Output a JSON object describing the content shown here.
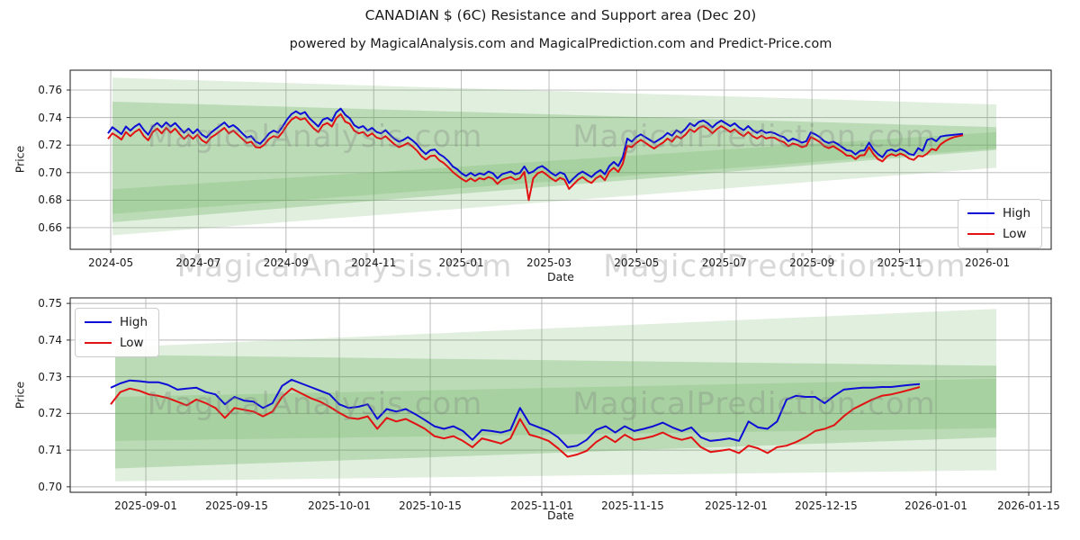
{
  "header": {
    "title": "CANADIAN $ (6C) Resistance and Support area (Dec 20)",
    "subtitle": "powered by MagicalAnalysis.com and MagicalPrediction.com and Predict-Price.com"
  },
  "watermarks": {
    "left_text": "MagicalAnalysis.com",
    "right_text": "MagicalPrediction.com"
  },
  "legend": {
    "high_label": "High",
    "low_label": "Low"
  },
  "colors": {
    "high": "#0d0dd6",
    "low": "#e31212",
    "band_green": "#58a84b",
    "grid": "#b5b5b5",
    "frame": "#2b2b2b",
    "tick_text": "#1a1a1a"
  },
  "chart_data": [
    {
      "type": "line",
      "name": "full-history",
      "ylabel": "Price",
      "xlabel": "Date",
      "legend_position": "lower-right",
      "grid": true,
      "ylim": [
        0.6443,
        0.7744
      ],
      "yticks": [
        0.76,
        0.74,
        0.72,
        0.7,
        0.68,
        0.66
      ],
      "ytick_labels": [
        "0.76",
        "0.74",
        "0.72",
        "0.70",
        "0.68",
        "0.66"
      ],
      "xticks": [
        {
          "label": "2024-05",
          "f": 0.0413
        },
        {
          "label": "2024-07",
          "f": 0.1306
        },
        {
          "label": "2024-09",
          "f": 0.22
        },
        {
          "label": "2024-11",
          "f": 0.3094
        },
        {
          "label": "2025-01",
          "f": 0.3987
        },
        {
          "label": "2025-03",
          "f": 0.4881
        },
        {
          "label": "2025-05",
          "f": 0.5774
        },
        {
          "label": "2025-07",
          "f": 0.6668
        },
        {
          "label": "2025-09",
          "f": 0.7561
        },
        {
          "label": "2025-11",
          "f": 0.8455
        },
        {
          "label": "2026-01",
          "f": 0.9349
        }
      ],
      "series_range": [
        0.0385,
        0.9101
      ],
      "series": [
        {
          "name": "High",
          "values": [
            0.7285,
            0.733,
            0.7305,
            0.728,
            0.7335,
            0.7305,
            0.7335,
            0.7355,
            0.731,
            0.7275,
            0.7335,
            0.736,
            0.733,
            0.7365,
            0.7335,
            0.736,
            0.7325,
            0.729,
            0.732,
            0.7285,
            0.7315,
            0.7275,
            0.7255,
            0.729,
            0.7315,
            0.734,
            0.7365,
            0.733,
            0.7345,
            0.732,
            0.7285,
            0.7255,
            0.7265,
            0.7225,
            0.721,
            0.7245,
            0.7285,
            0.7305,
            0.729,
            0.7335,
            0.7385,
            0.7425,
            0.7445,
            0.7425,
            0.744,
            0.7395,
            0.7365,
            0.7335,
            0.7385,
            0.7398,
            0.7375,
            0.7438,
            0.7465,
            0.742,
            0.7395,
            0.7345,
            0.7325,
            0.7338,
            0.7305,
            0.7325,
            0.7295,
            0.7285,
            0.7308,
            0.7275,
            0.7245,
            0.7225,
            0.7238,
            0.7258,
            0.7235,
            0.7205,
            0.7165,
            0.7135,
            0.7162,
            0.7168,
            0.7135,
            0.7115,
            0.7085,
            0.7045,
            0.7025,
            0.6995,
            0.6975,
            0.6998,
            0.6978,
            0.6995,
            0.6985,
            0.7008,
            0.6995,
            0.6958,
            0.6988,
            0.6998,
            0.7008,
            0.6988,
            0.6998,
            0.7045,
            0.6995,
            0.7008,
            0.7035,
            0.7048,
            0.7025,
            0.6998,
            0.6978,
            0.7002,
            0.6988,
            0.6925,
            0.6958,
            0.6988,
            0.7008,
            0.6988,
            0.6968,
            0.6998,
            0.7018,
            0.6988,
            0.7048,
            0.7078,
            0.7048,
            0.7112,
            0.7248,
            0.7225,
            0.7258,
            0.7278,
            0.7258,
            0.7238,
            0.7218,
            0.7238,
            0.7258,
            0.7288,
            0.7268,
            0.7308,
            0.7288,
            0.7318,
            0.7358,
            0.7338,
            0.7368,
            0.7378,
            0.7358,
            0.7328,
            0.7358,
            0.7378,
            0.7358,
            0.7338,
            0.7358,
            0.7328,
            0.7308,
            0.7338,
            0.7308,
            0.7288,
            0.7308,
            0.7288,
            0.7295,
            0.7285,
            0.7268,
            0.7258,
            0.7228,
            0.7248,
            0.7235,
            0.7218,
            0.7228,
            0.7292,
            0.7278,
            0.7258,
            0.7228,
            0.7215,
            0.7225,
            0.7208,
            0.7185,
            0.7162,
            0.7158,
            0.7132,
            0.7158,
            0.7162,
            0.7218,
            0.7168,
            0.7135,
            0.7112,
            0.7158,
            0.7168,
            0.7155,
            0.7172,
            0.7158,
            0.7135,
            0.7128,
            0.7178,
            0.7158,
            0.7238,
            0.7248,
            0.7228,
            0.7262,
            0.7268,
            0.7272,
            0.7275,
            0.7278,
            0.7282
          ]
        },
        {
          "name": "Low",
          "values": [
            0.7245,
            0.7285,
            0.7265,
            0.724,
            0.7295,
            0.7265,
            0.7295,
            0.7315,
            0.7265,
            0.7235,
            0.7295,
            0.732,
            0.7285,
            0.7325,
            0.729,
            0.732,
            0.728,
            0.7245,
            0.7275,
            0.7245,
            0.7275,
            0.7235,
            0.7215,
            0.7255,
            0.7275,
            0.73,
            0.7325,
            0.7285,
            0.7305,
            0.7275,
            0.7245,
            0.7215,
            0.7225,
            0.7185,
            0.7182,
            0.7205,
            0.7245,
            0.7265,
            0.7255,
            0.7295,
            0.7345,
            0.7385,
            0.7405,
            0.7385,
            0.7395,
            0.7355,
            0.732,
            0.7295,
            0.7345,
            0.736,
            0.7335,
            0.7395,
            0.7425,
            0.737,
            0.7355,
            0.7305,
            0.7285,
            0.7295,
            0.7265,
            0.7285,
            0.7255,
            0.7245,
            0.7265,
            0.7235,
            0.7205,
            0.7185,
            0.7198,
            0.7215,
            0.719,
            0.716,
            0.712,
            0.7095,
            0.712,
            0.7125,
            0.709,
            0.707,
            0.704,
            0.7005,
            0.698,
            0.6955,
            0.6935,
            0.6958,
            0.6938,
            0.696,
            0.695,
            0.6968,
            0.6955,
            0.6918,
            0.6948,
            0.6958,
            0.6968,
            0.6948,
            0.6958,
            0.7005,
            0.68,
            0.6958,
            0.6995,
            0.7008,
            0.6985,
            0.6958,
            0.6938,
            0.6962,
            0.6948,
            0.6882,
            0.6915,
            0.6948,
            0.6968,
            0.6942,
            0.6925,
            0.6958,
            0.6978,
            0.6945,
            0.7008,
            0.7035,
            0.7005,
            0.7065,
            0.7195,
            0.7185,
            0.7215,
            0.7238,
            0.7218,
            0.7195,
            0.7175,
            0.7198,
            0.7218,
            0.7248,
            0.7225,
            0.7265,
            0.7248,
            0.7275,
            0.7315,
            0.7295,
            0.7325,
            0.7338,
            0.7318,
            0.7285,
            0.7315,
            0.7338,
            0.7318,
            0.7295,
            0.7315,
            0.7285,
            0.7265,
            0.7295,
            0.7265,
            0.7248,
            0.7268,
            0.7248,
            0.7255,
            0.7252,
            0.7232,
            0.7222,
            0.7192,
            0.7212,
            0.7202,
            0.7185,
            0.7195,
            0.7258,
            0.7242,
            0.7222,
            0.7192,
            0.7178,
            0.7192,
            0.7172,
            0.7152,
            0.7125,
            0.7122,
            0.7098,
            0.7125,
            0.7128,
            0.7185,
            0.7135,
            0.7098,
            0.7082,
            0.7118,
            0.7135,
            0.7122,
            0.7138,
            0.7125,
            0.7102,
            0.7092,
            0.7122,
            0.7118,
            0.7138,
            0.7172,
            0.7162,
            0.7205,
            0.7228,
            0.7245,
            0.7258,
            0.7265,
            0.7272
          ]
        }
      ],
      "bands": [
        {
          "alpha": 0.18,
          "points": [
            [
              0.0431,
              0.769
            ],
            [
              0.944,
              0.7495
            ],
            [
              0.944,
              0.7035
            ],
            [
              0.0431,
              0.6545
            ]
          ]
        },
        {
          "alpha": 0.28,
          "points": [
            [
              0.0431,
              0.7515
            ],
            [
              0.944,
              0.733
            ],
            [
              0.944,
              0.7165
            ],
            [
              0.0431,
              0.664
            ]
          ]
        },
        {
          "alpha": 0.2,
          "points": [
            [
              0.0431,
              0.688
            ],
            [
              0.944,
              0.7295
            ],
            [
              0.944,
              0.7175
            ],
            [
              0.0431,
              0.67
            ]
          ]
        }
      ]
    },
    {
      "type": "line",
      "name": "recent-zoom",
      "ylabel": "Price",
      "xlabel": "Date",
      "legend_position": "upper-left",
      "grid": true,
      "ylim": [
        0.6985,
        0.7515
      ],
      "yticks": [
        0.75,
        0.74,
        0.73,
        0.72,
        0.71,
        0.7
      ],
      "ytick_labels": [
        "0.75",
        "0.74",
        "0.73",
        "0.72",
        "0.71",
        "0.70"
      ],
      "xticks": [
        {
          "label": "2025-09-01",
          "f": 0.0771
        },
        {
          "label": "2025-09-15",
          "f": 0.1697
        },
        {
          "label": "2025-10-01",
          "f": 0.2743
        },
        {
          "label": "2025-10-15",
          "f": 0.367
        },
        {
          "label": "2025-11-01",
          "f": 0.4807
        },
        {
          "label": "2025-11-15",
          "f": 0.5734
        },
        {
          "label": "2025-12-01",
          "f": 0.6789
        },
        {
          "label": "2025-12-15",
          "f": 0.7706
        },
        {
          "label": "2026-01-01",
          "f": 0.8826
        },
        {
          "label": "2026-01-15",
          "f": 0.9771
        }
      ],
      "series_range": [
        0.0413,
        0.8661
      ],
      "series": [
        {
          "name": "High",
          "values": [
            0.727,
            0.7282,
            0.729,
            0.7288,
            0.7285,
            0.7285,
            0.7278,
            0.7265,
            0.7268,
            0.727,
            0.7258,
            0.7252,
            0.7225,
            0.7245,
            0.7235,
            0.7232,
            0.7215,
            0.7228,
            0.7275,
            0.7292,
            0.7282,
            0.7272,
            0.7262,
            0.7252,
            0.7225,
            0.7215,
            0.7218,
            0.7225,
            0.7185,
            0.7212,
            0.7205,
            0.7212,
            0.7198,
            0.7182,
            0.7165,
            0.7158,
            0.7165,
            0.7152,
            0.7128,
            0.7155,
            0.7152,
            0.7148,
            0.7155,
            0.7215,
            0.7172,
            0.7162,
            0.7152,
            0.7135,
            0.7108,
            0.7112,
            0.7128,
            0.7155,
            0.7165,
            0.7148,
            0.7165,
            0.7152,
            0.7158,
            0.7165,
            0.7175,
            0.7162,
            0.7152,
            0.7162,
            0.7135,
            0.7125,
            0.7128,
            0.7132,
            0.7125,
            0.7178,
            0.7162,
            0.7158,
            0.7178,
            0.7238,
            0.7248,
            0.7245,
            0.7245,
            0.7228,
            0.7248,
            0.7265,
            0.7268,
            0.727,
            0.727,
            0.7272,
            0.7272,
            0.7275,
            0.7278,
            0.728
          ]
        },
        {
          "name": "Low",
          "values": [
            0.7225,
            0.7258,
            0.7268,
            0.7262,
            0.7252,
            0.7248,
            0.7242,
            0.7232,
            0.7222,
            0.7238,
            0.7228,
            0.7215,
            0.7188,
            0.7215,
            0.721,
            0.7205,
            0.7192,
            0.7205,
            0.7245,
            0.7268,
            0.7255,
            0.7242,
            0.7232,
            0.7218,
            0.7202,
            0.7188,
            0.7185,
            0.7192,
            0.7158,
            0.7188,
            0.7178,
            0.7185,
            0.7172,
            0.7158,
            0.7138,
            0.7132,
            0.7138,
            0.7125,
            0.7108,
            0.7132,
            0.7125,
            0.7118,
            0.7132,
            0.7185,
            0.7142,
            0.7135,
            0.7125,
            0.7105,
            0.7082,
            0.7088,
            0.7098,
            0.7122,
            0.7138,
            0.7122,
            0.7142,
            0.7128,
            0.7132,
            0.7138,
            0.7148,
            0.7135,
            0.7128,
            0.7135,
            0.7108,
            0.7095,
            0.7098,
            0.7102,
            0.7092,
            0.7112,
            0.7105,
            0.7092,
            0.7108,
            0.7112,
            0.7122,
            0.7135,
            0.7152,
            0.7158,
            0.7168,
            0.7192,
            0.7212,
            0.7225,
            0.7238,
            0.7248,
            0.7252,
            0.7258,
            0.7265,
            0.7272
          ]
        }
      ],
      "bands": [
        {
          "alpha": 0.18,
          "points": [
            [
              0.0459,
              0.738
            ],
            [
              0.944,
              0.7485
            ],
            [
              0.944,
              0.7045
            ],
            [
              0.0459,
              0.7015
            ]
          ]
        },
        {
          "alpha": 0.28,
          "points": [
            [
              0.0459,
              0.736
            ],
            [
              0.944,
              0.733
            ],
            [
              0.944,
              0.7135
            ],
            [
              0.0459,
              0.705
            ]
          ]
        },
        {
          "alpha": 0.2,
          "points": [
            [
              0.0459,
              0.7245
            ],
            [
              0.944,
              0.7295
            ],
            [
              0.944,
              0.716
            ],
            [
              0.0459,
              0.7125
            ]
          ]
        }
      ]
    }
  ]
}
